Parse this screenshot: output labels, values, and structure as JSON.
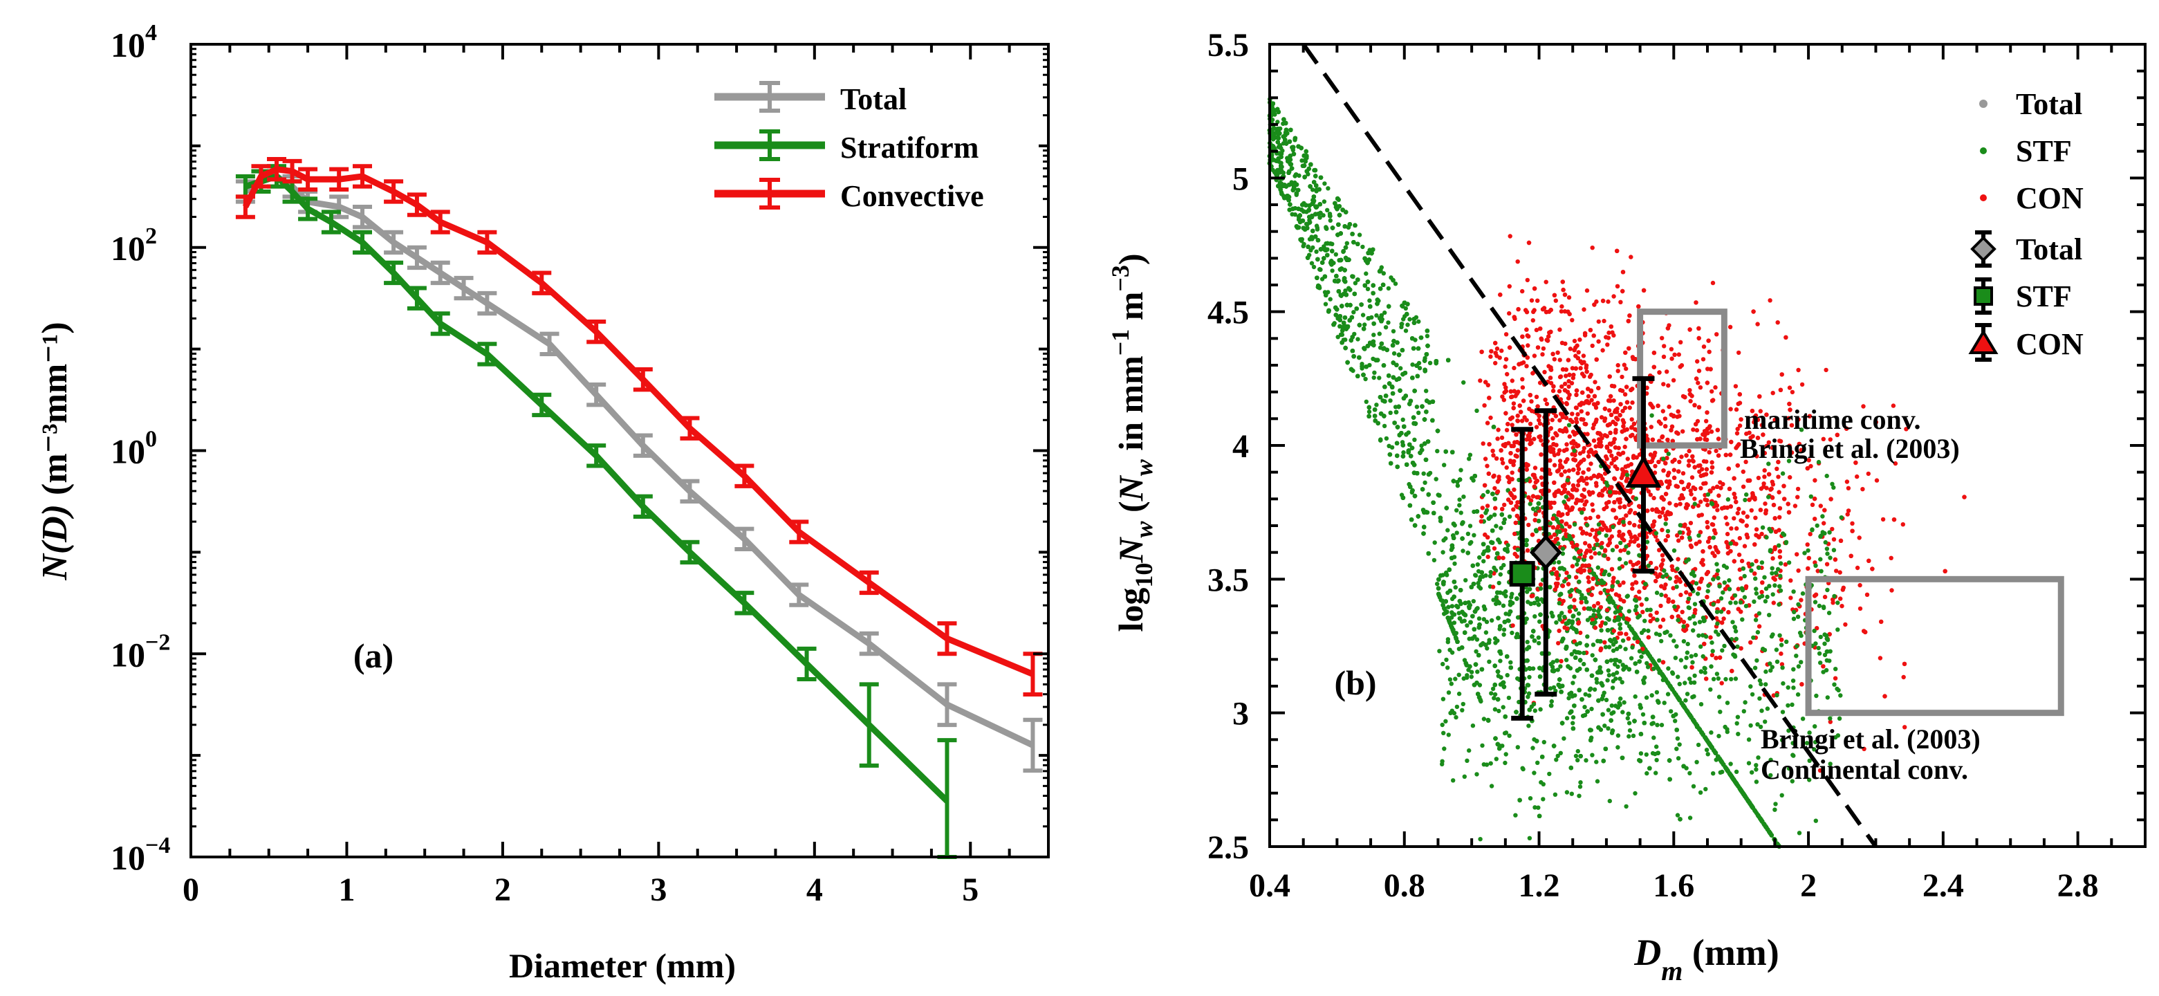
{
  "colors": {
    "total": "#999999",
    "stratiform": "#1a8c1a",
    "convective": "#ee1111",
    "box": "#8a8a8a",
    "axis": "#000000",
    "dashed": "#000000"
  },
  "chart_data": [
    {
      "type": "line",
      "panel_label": "(a)",
      "xlabel": "Diameter (mm)",
      "ylabel_main": "N(D)",
      "ylabel_units": "(m⁻³mm⁻¹)",
      "xscale": "linear",
      "yscale": "log",
      "xlim": [
        0,
        5.5
      ],
      "ylim_exponents": [
        -4,
        4
      ],
      "xticks": [
        0,
        1,
        2,
        3,
        4,
        5
      ],
      "xtick_labels": [
        "0",
        "1",
        "2",
        "3",
        "4",
        "5"
      ],
      "yticks_exponents": [
        -4,
        -2,
        0,
        2,
        4
      ],
      "ytick_base": "10",
      "ytick_exponent_labels": [
        "−4",
        "−2",
        "0",
        "2",
        "4"
      ],
      "legend_location": "top-right",
      "series": [
        {
          "name": "Total",
          "color_key": "total",
          "x": [
            0.35,
            0.45,
            0.55,
            0.65,
            0.75,
            0.95,
            1.1,
            1.3,
            1.45,
            1.6,
            1.75,
            1.9,
            2.3,
            2.6,
            2.9,
            3.2,
            3.55,
            3.9,
            4.35,
            4.85,
            5.4
          ],
          "log10_y": [
            2.55,
            2.65,
            2.7,
            2.6,
            2.45,
            2.4,
            2.3,
            2.05,
            1.9,
            1.75,
            1.6,
            1.45,
            1.05,
            0.55,
            0.05,
            -0.4,
            -0.87,
            -1.42,
            -1.9,
            -2.5,
            -2.9
          ],
          "err": [
            0.1,
            0.1,
            0.1,
            0.1,
            0.1,
            0.1,
            0.1,
            0.1,
            0.1,
            0.1,
            0.1,
            0.1,
            0.1,
            0.1,
            0.1,
            0.1,
            0.1,
            0.1,
            0.1,
            0.2,
            0.25
          ]
        },
        {
          "name": "Stratiform",
          "color_key": "stratiform",
          "x": [
            0.35,
            0.45,
            0.55,
            0.65,
            0.75,
            0.9,
            1.1,
            1.3,
            1.45,
            1.6,
            1.9,
            2.25,
            2.6,
            2.9,
            3.2,
            3.55,
            3.95,
            4.35,
            4.85
          ],
          "log10_y": [
            2.6,
            2.65,
            2.7,
            2.55,
            2.38,
            2.25,
            2.05,
            1.75,
            1.5,
            1.25,
            0.95,
            0.45,
            -0.05,
            -0.55,
            -1.0,
            -1.5,
            -2.1,
            -2.7,
            -3.45
          ],
          "err": [
            0.1,
            0.1,
            0.1,
            0.1,
            0.1,
            0.1,
            0.1,
            0.1,
            0.1,
            0.1,
            0.1,
            0.1,
            0.1,
            0.1,
            0.1,
            0.1,
            0.15,
            0.4,
            0.6
          ]
        },
        {
          "name": "Convective",
          "color_key": "convective",
          "x": [
            0.35,
            0.45,
            0.55,
            0.65,
            0.75,
            0.95,
            1.1,
            1.3,
            1.45,
            1.6,
            1.9,
            2.25,
            2.6,
            2.9,
            3.2,
            3.55,
            3.9,
            4.35,
            4.85,
            5.4
          ],
          "log10_y": [
            2.4,
            2.7,
            2.77,
            2.75,
            2.67,
            2.67,
            2.7,
            2.55,
            2.42,
            2.25,
            2.05,
            1.65,
            1.17,
            0.7,
            0.22,
            -0.25,
            -0.8,
            -1.3,
            -1.85,
            -2.2
          ],
          "err": [
            0.1,
            0.1,
            0.1,
            0.1,
            0.1,
            0.1,
            0.1,
            0.1,
            0.1,
            0.1,
            0.1,
            0.1,
            0.1,
            0.1,
            0.1,
            0.1,
            0.1,
            0.1,
            0.15,
            0.2
          ]
        }
      ]
    },
    {
      "type": "scatter",
      "panel_label": "(b)",
      "xlabel_main": "D",
      "xlabel_sub": "m",
      "xlabel_units": "(mm)",
      "ylabel_parts": {
        "log": "log",
        "base": "10",
        "N": "N",
        "w": "w",
        "in": " in mm",
        "exp1": "−1",
        "m": "m",
        "exp2": "−3",
        "close": ")"
      },
      "xlim": [
        0.4,
        3.0
      ],
      "ylim": [
        2.5,
        5.5
      ],
      "xticks": [
        0.4,
        0.8,
        1.2,
        1.6,
        2.0,
        2.4,
        2.8
      ],
      "xtick_labels": [
        "0.4",
        "0.8",
        "1.2",
        "1.6",
        "2",
        "2.4",
        "2.8"
      ],
      "yticks": [
        2.5,
        3.0,
        3.5,
        4.0,
        4.5,
        5.0,
        5.5
      ],
      "ytick_labels": [
        "2.5",
        "3",
        "3.5",
        "4",
        "4.5",
        "5",
        "5.5"
      ],
      "legend_location": "top-right",
      "legend_entries": [
        {
          "label": "Total",
          "kind": "dot",
          "color_key": "total"
        },
        {
          "label": "STF",
          "kind": "dot",
          "color_key": "stratiform"
        },
        {
          "label": "CON",
          "kind": "dot",
          "color_key": "convective"
        },
        {
          "label": "Total",
          "kind": "diamond",
          "color_key": "total"
        },
        {
          "label": "STF",
          "kind": "square",
          "color_key": "stratiform"
        },
        {
          "label": "CON",
          "kind": "triangle",
          "color_key": "convective"
        }
      ],
      "scatter_clouds": {
        "stratiform": {
          "point_count": 9000,
          "dm_range": [
            0.4,
            2.3
          ],
          "log10nw_range": [
            2.5,
            5.35
          ]
        },
        "convective": {
          "point_count": 2600,
          "dm_range": [
            0.9,
            3.0
          ],
          "log10nw_range": [
            2.6,
            4.7
          ]
        }
      },
      "mean_markers": [
        {
          "name": "Total",
          "marker": "diamond",
          "color_key": "total",
          "dm": 1.22,
          "log10nw": 3.6,
          "err_low": 3.07,
          "err_high": 4.13
        },
        {
          "name": "STF",
          "marker": "square",
          "color_key": "stratiform",
          "dm": 1.15,
          "log10nw": 3.52,
          "err_low": 2.98,
          "err_high": 4.06
        },
        {
          "name": "CON",
          "marker": "triangle",
          "color_key": "convective",
          "dm": 1.51,
          "log10nw": 3.89,
          "err_low": 3.53,
          "err_high": 4.25
        }
      ],
      "reference_line": {
        "style": "dashed",
        "dm": [
          0.5,
          2.2
        ],
        "log10nw": [
          5.5,
          2.5
        ]
      },
      "reference_boxes": [
        {
          "name": "maritime",
          "dm": [
            1.5,
            1.75
          ],
          "log10nw": [
            4.0,
            4.5
          ],
          "caption_line1": "maritime conv.",
          "caption_line2": "Bringi et al. (2003)"
        },
        {
          "name": "continental",
          "dm": [
            2.0,
            2.75
          ],
          "log10nw": [
            3.0,
            3.5
          ],
          "caption_line1": "Bringi et al. (2003)",
          "caption_line2": "Continental conv."
        }
      ]
    }
  ]
}
